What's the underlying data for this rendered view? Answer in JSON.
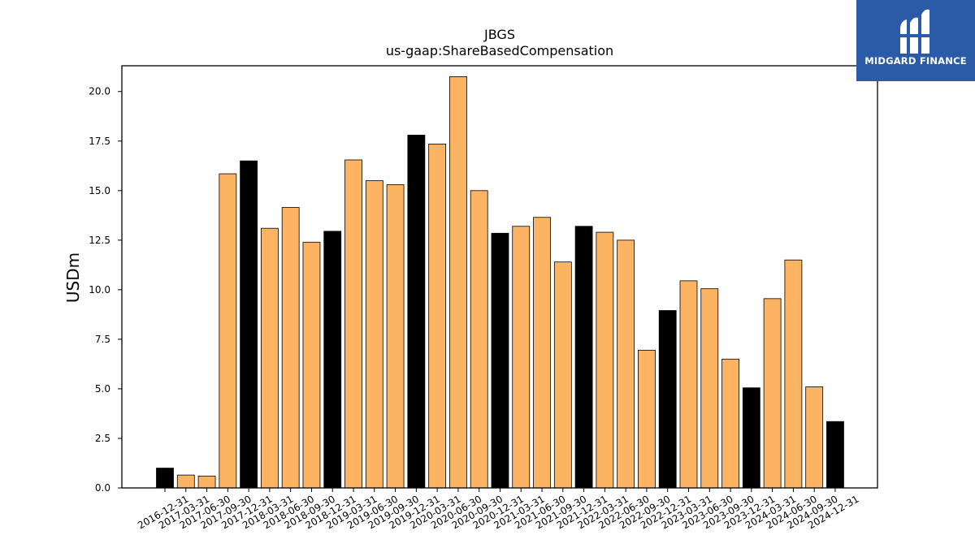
{
  "chart_data": {
    "type": "bar",
    "title": "JBGS",
    "subtitle": "us-gaap:ShareBasedCompensation",
    "xlabel": "",
    "ylabel": "USDm",
    "ylim": [
      0,
      21.3
    ],
    "yticks": [
      "0.0",
      "2.5",
      "5.0",
      "7.5",
      "10.0",
      "12.5",
      "15.0",
      "17.5",
      "20.0"
    ],
    "grid": false,
    "colors": {
      "quarter": "#fdb462",
      "year_end": "#000000",
      "edge": "#000000"
    },
    "categories": [
      "2016-12-31",
      "2017-03-31",
      "2017-06-30",
      "2017-09-30",
      "2017-12-31",
      "2018-03-31",
      "2018-06-30",
      "2018-09-30",
      "2018-12-31",
      "2019-03-31",
      "2019-06-30",
      "2019-09-30",
      "2019-12-31",
      "2020-03-31",
      "2020-06-30",
      "2020-09-30",
      "2020-12-31",
      "2021-03-31",
      "2021-06-30",
      "2021-09-30",
      "2021-12-31",
      "2022-03-31",
      "2022-06-30",
      "2022-09-30",
      "2022-12-31",
      "2023-03-31",
      "2023-06-30",
      "2023-09-30",
      "2023-12-31",
      "2024-03-31",
      "2024-06-30",
      "2024-09-30",
      "2024-12-31"
    ],
    "values": [
      1.0,
      0.65,
      0.6,
      15.85,
      16.5,
      13.1,
      14.15,
      12.4,
      12.95,
      16.55,
      15.5,
      15.3,
      17.8,
      17.35,
      20.75,
      15.0,
      12.85,
      13.2,
      13.65,
      11.4,
      13.2,
      12.9,
      12.5,
      6.95,
      8.95,
      10.45,
      10.05,
      6.5,
      5.05,
      9.55,
      11.5,
      5.1,
      3.35
    ]
  },
  "logo": {
    "text": "MIDGARD FINANCE",
    "icon": "midgard-logo-icon"
  }
}
